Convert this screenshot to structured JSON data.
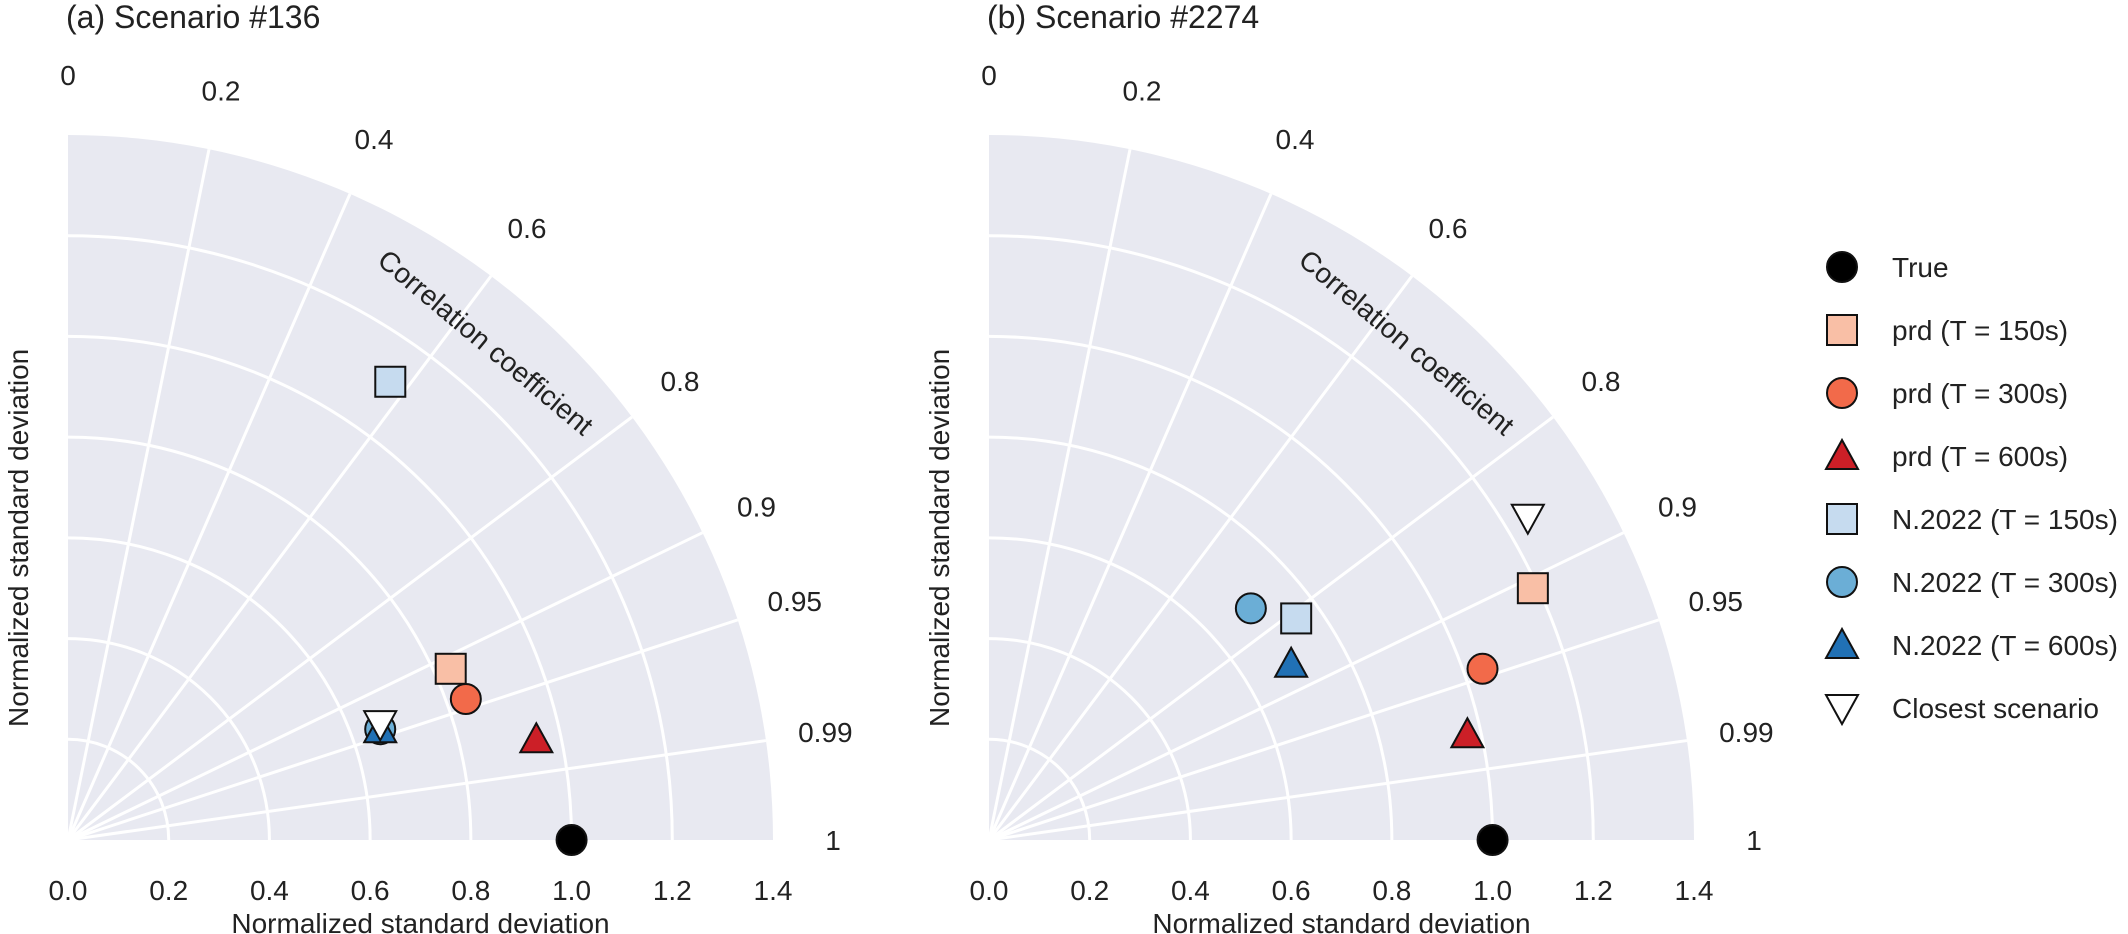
{
  "figure": {
    "legend_placement": "right"
  },
  "legend": [
    {
      "key": "true",
      "label": "True",
      "marker": "circle",
      "color": "#000000"
    },
    {
      "key": "prd150",
      "label": "prd (T = 150s)",
      "marker": "square",
      "color": "#f9bfa6"
    },
    {
      "key": "prd300",
      "label": "prd (T = 300s)",
      "marker": "circle",
      "color": "#f26a4a"
    },
    {
      "key": "prd600",
      "label": "prd (T = 600s)",
      "marker": "triangle",
      "color": "#cc1f27"
    },
    {
      "key": "n150",
      "label": "N.2022 (T = 150s)",
      "marker": "square",
      "color": "#c6dbef"
    },
    {
      "key": "n300",
      "label": "N.2022 (T = 300s)",
      "marker": "circle",
      "color": "#6baed6"
    },
    {
      "key": "n600",
      "label": "N.2022 (T = 600s)",
      "marker": "triangle",
      "color": "#2171b5"
    },
    {
      "key": "closest",
      "label": "Closest scenario",
      "marker": "triangle-down",
      "color": "#ffffff"
    }
  ],
  "chart_data": [
    {
      "type": "scatter",
      "subtype": "taylor-diagram",
      "title": "(a) Scenario #136",
      "xlabel": "Normalized standard deviation",
      "ylabel": "Normalized standard deviation",
      "angular_label": "Correlation coefficient",
      "std_range": [
        0,
        1.4
      ],
      "std_ticks": [
        "0.0",
        "0.2",
        "0.4",
        "0.6",
        "0.8",
        "1.0",
        "1.2",
        "1.4"
      ],
      "corr_ticks": [
        "0",
        "0.2",
        "0.4",
        "0.6",
        "0.8",
        "0.9",
        "0.95",
        "0.99",
        "1"
      ],
      "points": [
        {
          "series": "true",
          "x": 1.0,
          "y": 0.0
        },
        {
          "series": "prd150",
          "x": 0.76,
          "y": 0.34
        },
        {
          "series": "prd300",
          "x": 0.79,
          "y": 0.28
        },
        {
          "series": "prd600",
          "x": 0.93,
          "y": 0.2
        },
        {
          "series": "n150",
          "x": 0.64,
          "y": 0.91
        },
        {
          "series": "n300",
          "x": 0.62,
          "y": 0.22
        },
        {
          "series": "n600",
          "x": 0.62,
          "y": 0.22
        },
        {
          "series": "closest",
          "x": 0.62,
          "y": 0.23
        }
      ]
    },
    {
      "type": "scatter",
      "subtype": "taylor-diagram",
      "title": "(b) Scenario #2274",
      "xlabel": "Normalized standard deviation",
      "ylabel": "Normalized standard deviation",
      "angular_label": "Correlation coefficient",
      "std_range": [
        0,
        1.4
      ],
      "std_ticks": [
        "0.0",
        "0.2",
        "0.4",
        "0.6",
        "0.8",
        "1.0",
        "1.2",
        "1.4"
      ],
      "corr_ticks": [
        "0",
        "0.2",
        "0.4",
        "0.6",
        "0.8",
        "0.9",
        "0.95",
        "0.99",
        "1"
      ],
      "points": [
        {
          "series": "true",
          "x": 1.0,
          "y": 0.0
        },
        {
          "series": "prd150",
          "x": 1.08,
          "y": 0.5
        },
        {
          "series": "prd300",
          "x": 0.98,
          "y": 0.34
        },
        {
          "series": "prd600",
          "x": 0.95,
          "y": 0.21
        },
        {
          "series": "n150",
          "x": 0.61,
          "y": 0.44
        },
        {
          "series": "n300",
          "x": 0.52,
          "y": 0.46
        },
        {
          "series": "n600",
          "x": 0.6,
          "y": 0.35
        },
        {
          "series": "closest",
          "x": 1.07,
          "y": 0.64
        }
      ]
    }
  ]
}
